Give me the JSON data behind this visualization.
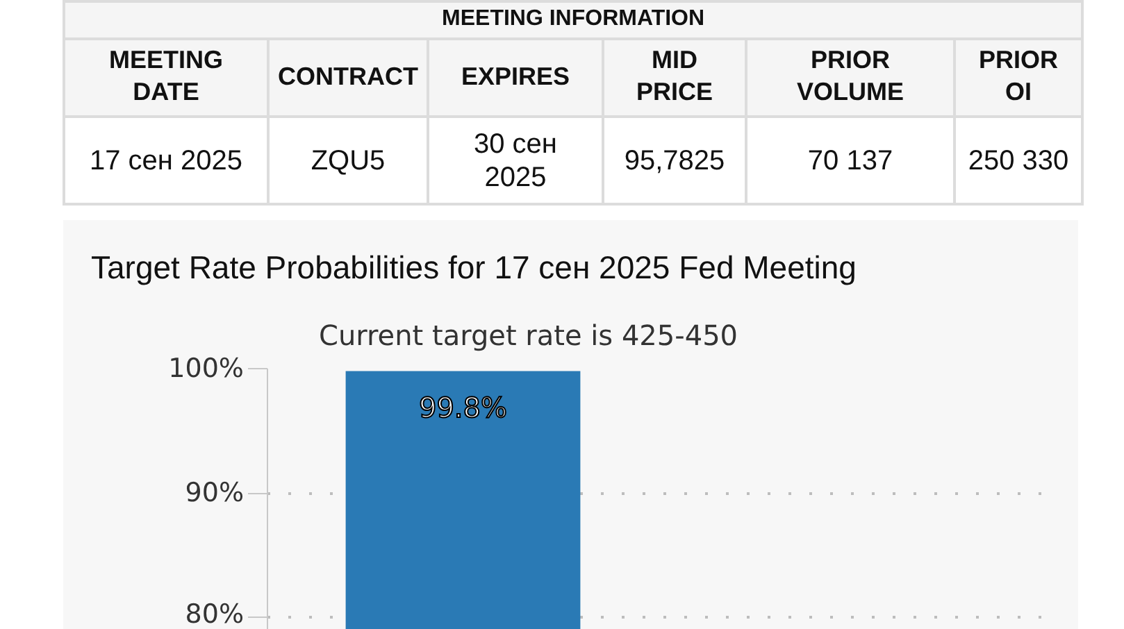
{
  "chart_data": [
    {
      "type": "other",
      "title": "MEETING INFORMATION",
      "categories": [
        "MEETING DATE",
        "CONTRACT",
        "EXPIRES",
        "MID PRICE",
        "PRIOR VOLUME",
        "PRIOR OI"
      ],
      "annotations": [
        "17 сен 2025",
        "ZQU5",
        "30 сен 2025",
        "95,7825",
        "70 137",
        "250 330"
      ]
    },
    {
      "type": "bar",
      "title": "Target Rate Probabilities for 17 сен 2025 Fed Meeting",
      "subtitle": "Current target rate is 425-450",
      "categories": [
        null,
        null
      ],
      "values": [
        99.8,
        null
      ],
      "color": "#2a7ab5",
      "value_labels": [
        "99.8%",
        null
      ],
      "ylim": [
        79,
        100
      ],
      "yticks": [
        {
          "value": 80,
          "label": "80%"
        },
        {
          "value": 90,
          "label": "90%"
        },
        {
          "value": 100,
          "label": "100%"
        }
      ],
      "grid": "y",
      "tick_labels": "y"
    }
  ]
}
